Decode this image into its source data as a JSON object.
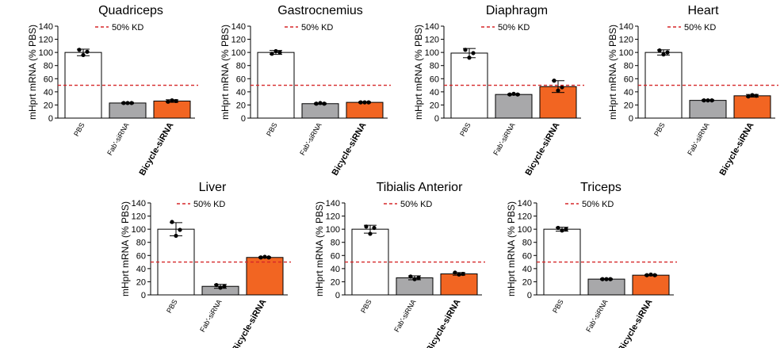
{
  "colors": {
    "pbs": "#ffffff",
    "fab": "#a8a8aa",
    "bicycle": "#f26522",
    "threshold": "#d62728",
    "axis": "#000000"
  },
  "chart_data": [
    {
      "type": "bar",
      "title": "Quadriceps",
      "ylabel": "mHprt mRNA (% PBS)",
      "ylim": [
        0,
        140
      ],
      "yticks": [
        0,
        20,
        40,
        60,
        80,
        100,
        120,
        140
      ],
      "categories": [
        "PBS",
        "Fab'-siRNA",
        "Bicycle-siRNA"
      ],
      "values": [
        100,
        23,
        26
      ],
      "errors": [
        5,
        1,
        2
      ],
      "points": [
        [
          104,
          96,
          101
        ],
        [
          23,
          23,
          23
        ],
        [
          25,
          27,
          26
        ]
      ],
      "threshold": 50,
      "legend": "50% KD"
    },
    {
      "type": "bar",
      "title": "Gastrocnemius",
      "ylabel": "mHprt mRNA (% PBS)",
      "ylim": [
        0,
        140
      ],
      "yticks": [
        0,
        20,
        40,
        60,
        80,
        100,
        120,
        140
      ],
      "categories": [
        "PBS",
        "Fab'-siRNA",
        "Bicycle-siRNA"
      ],
      "values": [
        100,
        22,
        24
      ],
      "errors": [
        3,
        1,
        1
      ],
      "points": [
        [
          98,
          102,
          100
        ],
        [
          22,
          23,
          22
        ],
        [
          24,
          24,
          24
        ]
      ],
      "threshold": 50,
      "legend": "50% KD"
    },
    {
      "type": "bar",
      "title": "Diaphragm",
      "ylabel": "mHprt mRNA (% PBS)",
      "ylim": [
        0,
        140
      ],
      "yticks": [
        0,
        20,
        40,
        60,
        80,
        100,
        120,
        140
      ],
      "categories": [
        "PBS",
        "Fab'-siRNA",
        "Bicycle-siRNA"
      ],
      "values": [
        99,
        36,
        48
      ],
      "errors": [
        7,
        1,
        9
      ],
      "points": [
        [
          104,
          92,
          99
        ],
        [
          36,
          37,
          36
        ],
        [
          57,
          42,
          47
        ]
      ],
      "threshold": 50,
      "legend": "50% KD"
    },
    {
      "type": "bar",
      "title": "Heart",
      "ylabel": "mHprt mRNA (% PBS)",
      "ylim": [
        0,
        140
      ],
      "yticks": [
        0,
        20,
        40,
        60,
        80,
        100,
        120,
        140
      ],
      "categories": [
        "PBS",
        "Fab'-siRNA",
        "Bicycle-siRNA"
      ],
      "values": [
        100,
        27,
        34
      ],
      "errors": [
        4,
        1,
        2
      ],
      "points": [
        [
          103,
          97,
          100
        ],
        [
          27,
          27,
          27
        ],
        [
          33,
          35,
          34
        ]
      ],
      "threshold": 50,
      "legend": "50% KD"
    },
    {
      "type": "bar",
      "title": "Liver",
      "ylabel": "mHprt mRNA (% PBS)",
      "ylim": [
        0,
        140
      ],
      "yticks": [
        0,
        20,
        40,
        60,
        80,
        100,
        120,
        140
      ],
      "categories": [
        "PBS",
        "Fab'-siRNA",
        "Bicycle-siRNA"
      ],
      "values": [
        100,
        13,
        57
      ],
      "errors": [
        10,
        3,
        1
      ],
      "points": [
        [
          111,
          90,
          99
        ],
        [
          15,
          11,
          13
        ],
        [
          57,
          58,
          57
        ]
      ],
      "threshold": 50,
      "legend": "50% KD"
    },
    {
      "type": "bar",
      "title": "Tibialis Anterior",
      "ylabel": "mHprt mRNA (% PBS)",
      "ylim": [
        0,
        140
      ],
      "yticks": [
        0,
        20,
        40,
        60,
        80,
        100,
        120,
        140
      ],
      "categories": [
        "PBS",
        "Fab'-siRNA",
        "Bicycle-siRNA"
      ],
      "values": [
        100,
        26,
        32
      ],
      "errors": [
        6,
        3,
        2
      ],
      "points": [
        [
          104,
          93,
          102
        ],
        [
          28,
          24,
          26
        ],
        [
          34,
          31,
          32
        ]
      ],
      "threshold": 50,
      "legend": "50% KD"
    },
    {
      "type": "bar",
      "title": "Triceps",
      "ylabel": "mHprt mRNA (% PBS)",
      "ylim": [
        0,
        140
      ],
      "yticks": [
        0,
        20,
        40,
        60,
        80,
        100,
        120,
        140
      ],
      "categories": [
        "PBS",
        "Fab'-siRNA",
        "Bicycle-siRNA"
      ],
      "values": [
        100,
        24,
        30
      ],
      "errors": [
        3,
        1,
        1
      ],
      "points": [
        [
          102,
          98,
          100
        ],
        [
          24,
          24,
          24
        ],
        [
          30,
          31,
          30
        ]
      ],
      "threshold": 50,
      "legend": "50% KD"
    }
  ]
}
